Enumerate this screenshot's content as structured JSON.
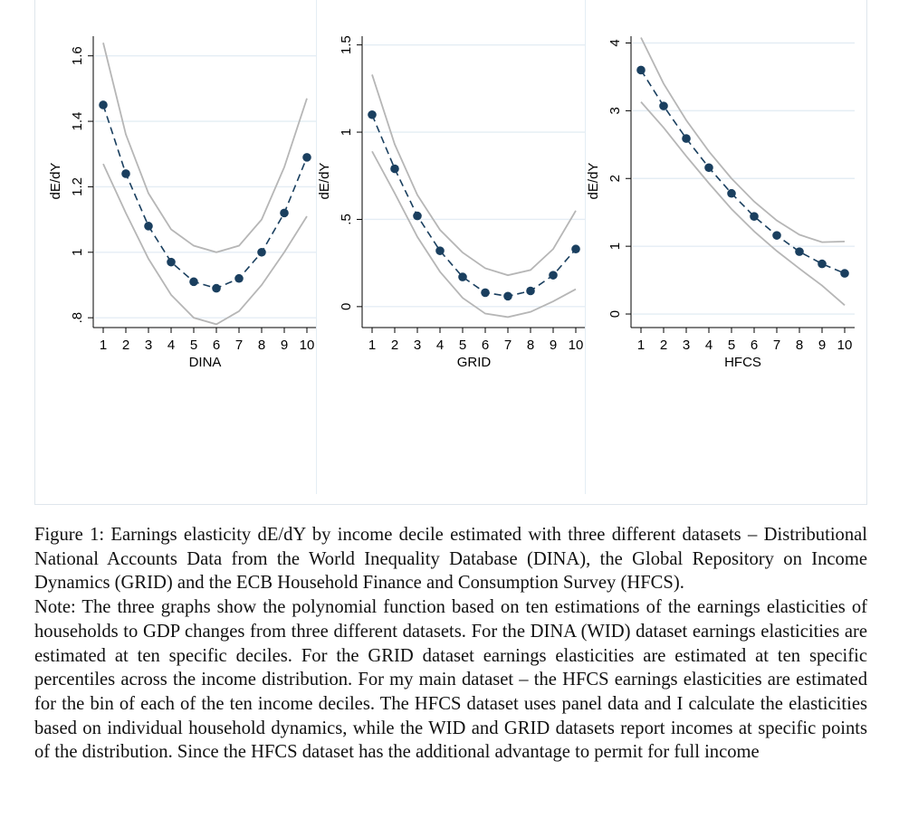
{
  "chart_data": [
    {
      "type": "line",
      "xlabel": "DINA",
      "ylabel": "dE/dY",
      "x": [
        1,
        2,
        3,
        4,
        5,
        6,
        7,
        8,
        9,
        10
      ],
      "ylim": [
        0.77,
        1.66
      ],
      "yticks": [
        0.8,
        1,
        1.2,
        1.4,
        1.6
      ],
      "ytick_labels": [
        ".8",
        "1",
        "1.2",
        "1.4",
        "1.6"
      ],
      "series": [
        {
          "name": "estimate",
          "style": "dashed-markers",
          "values": [
            1.45,
            1.24,
            1.08,
            0.97,
            0.91,
            0.89,
            0.92,
            1.0,
            1.12,
            1.29
          ]
        },
        {
          "name": "upper bound",
          "style": "gray-line",
          "values": [
            1.64,
            1.36,
            1.18,
            1.07,
            1.02,
            1.0,
            1.02,
            1.1,
            1.26,
            1.47
          ]
        },
        {
          "name": "lower bound",
          "style": "gray-line",
          "values": [
            1.27,
            1.12,
            0.98,
            0.87,
            0.8,
            0.78,
            0.82,
            0.9,
            1.0,
            1.11
          ]
        }
      ]
    },
    {
      "type": "line",
      "xlabel": "GRID",
      "ylabel": "dE/dY",
      "x": [
        1,
        2,
        3,
        4,
        5,
        6,
        7,
        8,
        9,
        10
      ],
      "ylim": [
        -0.12,
        1.55
      ],
      "yticks": [
        0,
        0.5,
        1,
        1.5
      ],
      "ytick_labels": [
        "0",
        ".5",
        "1",
        "1.5"
      ],
      "series": [
        {
          "name": "estimate",
          "style": "dashed-markers",
          "values": [
            1.1,
            0.79,
            0.52,
            0.32,
            0.17,
            0.08,
            0.06,
            0.09,
            0.18,
            0.33
          ]
        },
        {
          "name": "upper bound",
          "style": "gray-line",
          "values": [
            1.33,
            0.93,
            0.64,
            0.44,
            0.31,
            0.22,
            0.18,
            0.21,
            0.33,
            0.55
          ]
        },
        {
          "name": "lower bound",
          "style": "gray-line",
          "values": [
            0.89,
            0.65,
            0.4,
            0.2,
            0.05,
            -0.04,
            -0.06,
            -0.03,
            0.03,
            0.1
          ]
        }
      ]
    },
    {
      "type": "line",
      "xlabel": "HFCS",
      "ylabel": "dE/dY",
      "x": [
        1,
        2,
        3,
        4,
        5,
        6,
        7,
        8,
        9,
        10
      ],
      "ylim": [
        -0.2,
        4.1
      ],
      "yticks": [
        0,
        1,
        2,
        3,
        4
      ],
      "ytick_labels": [
        "0",
        "1",
        "2",
        "3",
        "4"
      ],
      "series": [
        {
          "name": "estimate",
          "style": "dashed-markers",
          "values": [
            3.6,
            3.07,
            2.59,
            2.16,
            1.78,
            1.44,
            1.16,
            0.92,
            0.74,
            0.6
          ]
        },
        {
          "name": "upper bound",
          "style": "gray-line",
          "values": [
            4.08,
            3.4,
            2.86,
            2.4,
            2.0,
            1.66,
            1.38,
            1.17,
            1.06,
            1.07
          ]
        },
        {
          "name": "lower bound",
          "style": "gray-line",
          "values": [
            3.13,
            2.75,
            2.33,
            1.93,
            1.55,
            1.22,
            0.93,
            0.67,
            0.42,
            0.13
          ]
        }
      ]
    }
  ],
  "caption": {
    "figure": "Figure 1: Earnings elasticity dE/dY by income decile estimated with three different datasets – Distributional National Accounts Data from the World Inequality Database (DINA), the Global Repository on Income Dynamics (GRID) and the ECB Household Finance and Consumption Survey (HFCS).",
    "note": "Note: The three graphs show the polynomial function based on ten estimations of the earnings elasticities of households to GDP changes from three different datasets. For the DINA (WID) dataset earnings elasticities are estimated at ten specific deciles. For the GRID dataset earnings elasticities are estimated at ten specific percentiles across the income distribution. For my main dataset – the HFCS earnings elasticities are estimated for the bin of each of the ten income deciles. The HFCS dataset uses panel data and I calculate the elasticities based on individual household dynamics, while the WID and GRID datasets report incomes at specific points of the distribution. Since the HFCS dataset has the additional advantage to permit for full income"
  },
  "colors": {
    "marker": "#1a3f5f",
    "ci_line": "#b6b6b6",
    "gridline": "#e4edf4",
    "axis": "#000000"
  }
}
